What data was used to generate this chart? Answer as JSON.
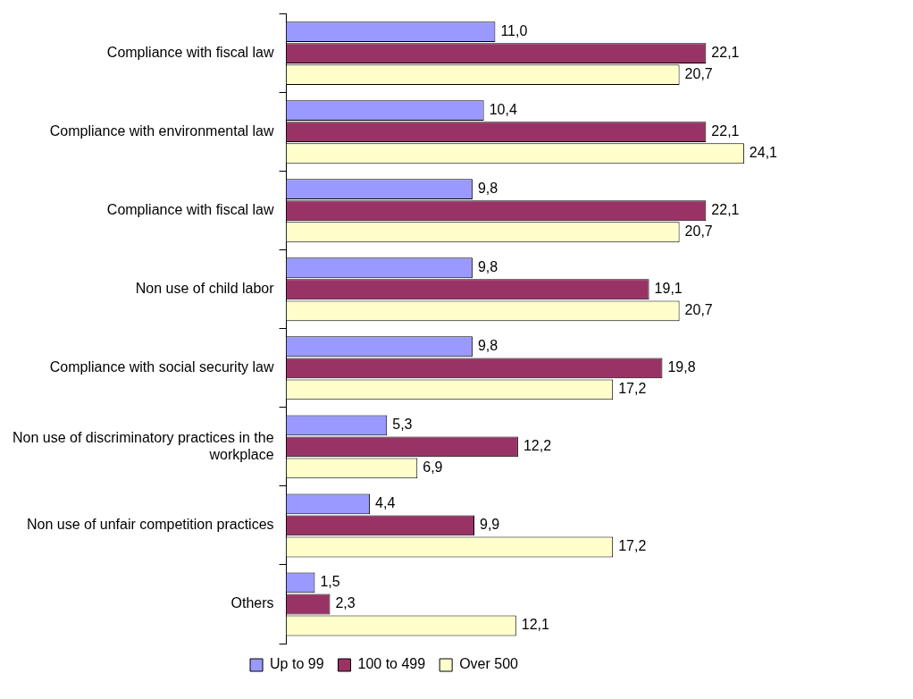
{
  "chart_data": {
    "type": "bar",
    "orientation": "horizontal",
    "categories": [
      "Compliance with fiscal law",
      "Compliance with environmental law",
      "Compliance with fiscal law",
      "Non use of child labor",
      "Compliance with social security law",
      "Non use of discriminatory practices in the workplace",
      "Non use of unfair competition practices",
      "Others"
    ],
    "series": [
      {
        "name": "Up to 99",
        "color": "#9999ff",
        "values": [
          11.0,
          10.4,
          9.8,
          9.8,
          9.8,
          5.3,
          4.4,
          1.5
        ],
        "value_labels": [
          "11,0",
          "10,4",
          "9,8",
          "9,8",
          "9,8",
          "5,3",
          "4,4",
          "1,5"
        ]
      },
      {
        "name": "100 to 499",
        "color": "#993366",
        "values": [
          22.1,
          22.1,
          22.1,
          19.1,
          19.8,
          12.2,
          9.9,
          2.3
        ],
        "value_labels": [
          "22,1",
          "22,1",
          "22,1",
          "19,1",
          "19,8",
          "12,2",
          "9,9",
          "2,3"
        ]
      },
      {
        "name": "Over 500",
        "color": "#ffffcc",
        "values": [
          20.7,
          24.1,
          20.7,
          20.7,
          17.2,
          6.9,
          17.2,
          12.1
        ],
        "value_labels": [
          "20,7",
          "24,1",
          "20,7",
          "20,7",
          "17,2",
          "6,9",
          "17,2",
          "12,1"
        ]
      }
    ],
    "tick_labels": "y",
    "legend": "bottom"
  }
}
